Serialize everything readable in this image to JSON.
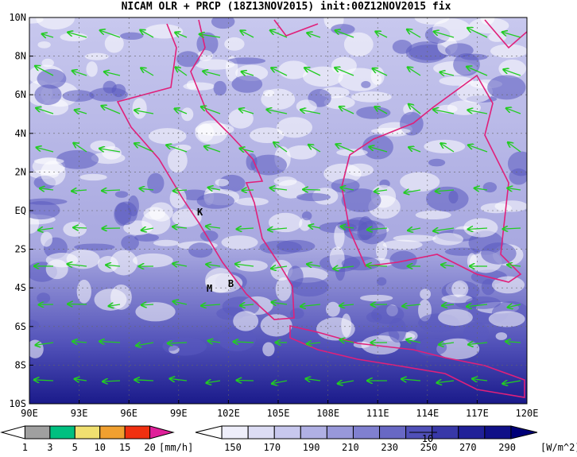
{
  "header": {
    "title": "NICAM OLR + PRCP (18Z13NOV2015) init:00Z12NOV2015 fix"
  },
  "map": {
    "lon_labels": [
      "90E",
      "93E",
      "96E",
      "99E",
      "102E",
      "105E",
      "108E",
      "111E",
      "114E",
      "117E",
      "120E"
    ],
    "lat_labels": [
      "10N",
      "8N",
      "6N",
      "4N",
      "2N",
      "EQ",
      "2S",
      "4S",
      "6S",
      "8S",
      "10S"
    ],
    "places": [
      "K",
      "M",
      "B"
    ],
    "vector_reference": "10"
  },
  "legends": {
    "precip": {
      "labels": [
        "1",
        "3",
        "5",
        "10",
        "15",
        "20"
      ],
      "unit": "[mm/h]"
    },
    "olr": {
      "labels": [
        "150",
        "170",
        "190",
        "210",
        "230",
        "250",
        "270",
        "290"
      ],
      "unit": "[W/m^2]"
    }
  }
}
